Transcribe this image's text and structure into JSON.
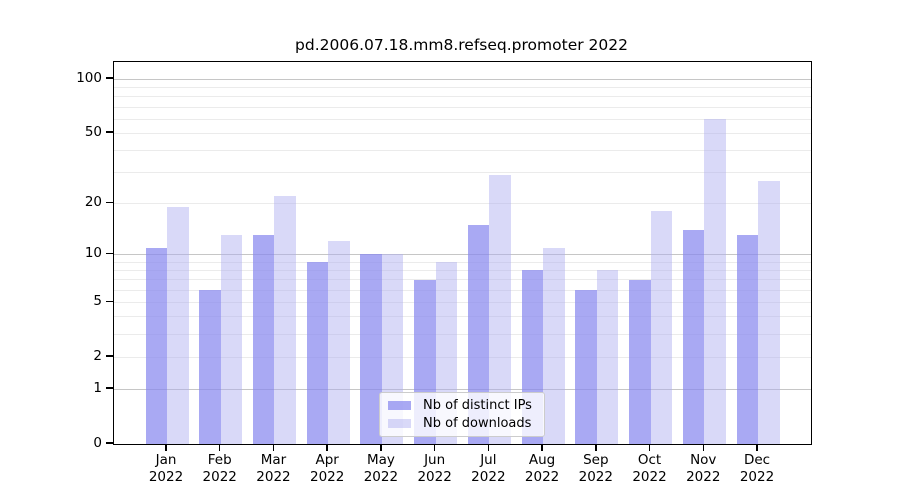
{
  "figure": {
    "title": "pd.2006.07.18.mm8.refseq.promoter 2022"
  },
  "chart_data": {
    "type": "bar",
    "title": "pd.2006.07.18.mm8.refseq.promoter 2022",
    "categories": [
      "Jan",
      "Feb",
      "Mar",
      "Apr",
      "May",
      "Jun",
      "Jul",
      "Aug",
      "Sep",
      "Oct",
      "Nov",
      "Dec"
    ],
    "year_label": "2022",
    "series": [
      {
        "name": "Nb of distinct IPs",
        "color": "#8888ee",
        "alpha": 0.72,
        "values": [
          11,
          6,
          13,
          9,
          10,
          7,
          15,
          8,
          6,
          7,
          14,
          13
        ]
      },
      {
        "name": "Nb of downloads",
        "color": "#aaaaf0",
        "alpha": 0.45,
        "values": [
          19,
          13,
          22,
          12,
          10,
          9,
          29,
          11,
          8,
          18,
          60,
          27
        ]
      }
    ],
    "xlabel": "",
    "ylabel": "",
    "yscale": "log1p",
    "ylim": [
      0,
      123
    ],
    "yticks": [
      100,
      50,
      20,
      10,
      5,
      2,
      1,
      0
    ],
    "grid": {
      "major": [
        1,
        10,
        100
      ],
      "minor": [
        2,
        3,
        4,
        5,
        6,
        7,
        8,
        9,
        20,
        30,
        40,
        50,
        60,
        70,
        80,
        90
      ],
      "major_color": "#c6c6c6",
      "minor_color": "#ebebeb"
    },
    "legend_position": "lower center",
    "axis_color": "#000000",
    "background_color": "#ffffff"
  }
}
